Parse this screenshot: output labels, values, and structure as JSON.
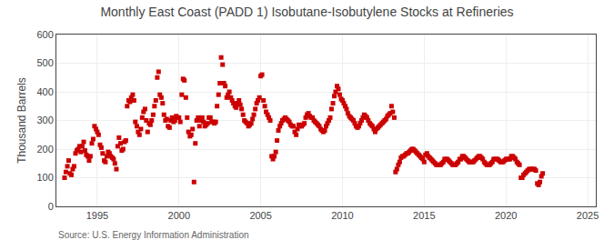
{
  "chart_data": {
    "type": "scatter",
    "title": "Monthly East Coast (PADD 1) Isobutane-Isobutylene Stocks at Refineries",
    "ylabel": "Thousand Barrels",
    "annotations": [
      "Source: U.S. Energy Information Administration"
    ],
    "color": "#cc0000",
    "marker": "square",
    "grid": true,
    "xlim": [
      1992.5,
      2025.5
    ],
    "ylim": [
      0,
      600
    ],
    "xticks": [
      1995,
      2000,
      2005,
      2010,
      2015,
      2020,
      2025
    ],
    "yticks": [
      0,
      100,
      200,
      300,
      400,
      500,
      600
    ],
    "x": [
      1993.0,
      1993.08,
      1993.17,
      1993.25,
      1993.33,
      1993.42,
      1993.5,
      1993.58,
      1993.67,
      1993.75,
      1993.83,
      1993.92,
      1994.0,
      1994.08,
      1994.17,
      1994.25,
      1994.33,
      1994.42,
      1994.5,
      1994.58,
      1994.67,
      1994.75,
      1994.83,
      1994.92,
      1995.0,
      1995.08,
      1995.17,
      1995.25,
      1995.33,
      1995.42,
      1995.5,
      1995.58,
      1995.67,
      1995.75,
      1995.83,
      1995.92,
      1996.0,
      1996.08,
      1996.17,
      1996.25,
      1996.33,
      1996.42,
      1996.5,
      1996.58,
      1996.67,
      1996.75,
      1996.83,
      1996.92,
      1997.0,
      1997.08,
      1997.17,
      1997.25,
      1997.33,
      1997.42,
      1997.5,
      1997.58,
      1997.67,
      1997.75,
      1997.83,
      1997.92,
      1998.0,
      1998.08,
      1998.17,
      1998.25,
      1998.33,
      1998.42,
      1998.5,
      1998.58,
      1998.67,
      1998.75,
      1998.83,
      1998.92,
      1999.0,
      1999.08,
      1999.17,
      1999.25,
      1999.33,
      1999.42,
      1999.5,
      1999.58,
      1999.67,
      1999.75,
      1999.83,
      1999.92,
      2000.0,
      2000.08,
      2000.17,
      2000.25,
      2000.33,
      2000.42,
      2000.5,
      2000.58,
      2000.67,
      2000.75,
      2000.83,
      2000.92,
      2001.0,
      2001.08,
      2001.17,
      2001.25,
      2001.33,
      2001.42,
      2001.5,
      2001.58,
      2001.67,
      2001.75,
      2001.83,
      2001.92,
      2002.0,
      2002.08,
      2002.17,
      2002.25,
      2002.33,
      2002.42,
      2002.5,
      2002.58,
      2002.67,
      2002.75,
      2002.83,
      2002.92,
      2003.0,
      2003.08,
      2003.17,
      2003.25,
      2003.33,
      2003.42,
      2003.5,
      2003.58,
      2003.67,
      2003.75,
      2003.83,
      2003.92,
      2004.0,
      2004.08,
      2004.17,
      2004.25,
      2004.33,
      2004.42,
      2004.5,
      2004.58,
      2004.67,
      2004.75,
      2004.83,
      2004.92,
      2005.0,
      2005.08,
      2005.17,
      2005.25,
      2005.33,
      2005.42,
      2005.5,
      2005.58,
      2005.67,
      2005.75,
      2005.83,
      2005.92,
      2006.0,
      2006.08,
      2006.17,
      2006.25,
      2006.33,
      2006.42,
      2006.5,
      2006.58,
      2006.67,
      2006.75,
      2006.83,
      2006.92,
      2007.0,
      2007.08,
      2007.17,
      2007.25,
      2007.33,
      2007.42,
      2007.5,
      2007.58,
      2007.67,
      2007.75,
      2007.83,
      2007.92,
      2008.0,
      2008.08,
      2008.17,
      2008.25,
      2008.33,
      2008.42,
      2008.5,
      2008.58,
      2008.67,
      2008.75,
      2008.83,
      2008.92,
      2009.0,
      2009.08,
      2009.17,
      2009.25,
      2009.33,
      2009.42,
      2009.5,
      2009.58,
      2009.67,
      2009.75,
      2009.83,
      2009.92,
      2010.0,
      2010.08,
      2010.17,
      2010.25,
      2010.33,
      2010.42,
      2010.5,
      2010.58,
      2010.67,
      2010.75,
      2010.83,
      2010.92,
      2011.0,
      2011.08,
      2011.17,
      2011.25,
      2011.33,
      2011.42,
      2011.5,
      2011.58,
      2011.67,
      2011.75,
      2011.83,
      2011.92,
      2012.0,
      2012.08,
      2012.17,
      2012.25,
      2012.33,
      2012.42,
      2012.5,
      2012.58,
      2012.67,
      2012.75,
      2012.83,
      2012.92,
      2013.0,
      2013.08,
      2013.17,
      2013.25,
      2013.33,
      2013.42,
      2013.5,
      2013.58,
      2013.67,
      2013.75,
      2013.83,
      2013.92,
      2014.0,
      2014.08,
      2014.17,
      2014.25,
      2014.33,
      2014.42,
      2014.5,
      2014.58,
      2014.67,
      2014.75,
      2014.83,
      2014.92,
      2015.0,
      2015.08,
      2015.17,
      2015.25,
      2015.33,
      2015.42,
      2015.5,
      2015.58,
      2015.67,
      2015.75,
      2015.83,
      2015.92,
      2016.0,
      2016.08,
      2016.17,
      2016.25,
      2016.33,
      2016.42,
      2016.5,
      2016.58,
      2016.67,
      2016.75,
      2016.83,
      2016.92,
      2017.0,
      2017.08,
      2017.17,
      2017.25,
      2017.33,
      2017.42,
      2017.5,
      2017.58,
      2017.67,
      2017.75,
      2017.83,
      2017.92,
      2018.0,
      2018.08,
      2018.17,
      2018.25,
      2018.33,
      2018.42,
      2018.5,
      2018.58,
      2018.67,
      2018.75,
      2018.83,
      2018.92,
      2019.0,
      2019.08,
      2019.17,
      2019.25,
      2019.33,
      2019.42,
      2019.5,
      2019.58,
      2019.67,
      2019.75,
      2019.83,
      2019.92,
      2020.0,
      2020.08,
      2020.17,
      2020.25,
      2020.33,
      2020.42,
      2020.5,
      2020.58,
      2020.67,
      2020.75,
      2020.83,
      2020.92,
      2021.0,
      2021.08,
      2021.17,
      2021.25,
      2021.33,
      2021.42,
      2021.5,
      2021.58,
      2021.67,
      2021.75,
      2021.83,
      2021.92,
      2022.0,
      2022.08,
      2022.17,
      2022.25
    ],
    "values": [
      100,
      120,
      140,
      160,
      115,
      110,
      130,
      140,
      185,
      195,
      200,
      210,
      190,
      210,
      225,
      195,
      180,
      175,
      160,
      175,
      220,
      235,
      280,
      270,
      260,
      250,
      215,
      205,
      185,
      160,
      155,
      175,
      190,
      185,
      175,
      170,
      165,
      150,
      130,
      210,
      240,
      220,
      195,
      200,
      225,
      230,
      350,
      370,
      365,
      380,
      390,
      370,
      295,
      280,
      260,
      250,
      270,
      310,
      330,
      340,
      300,
      260,
      290,
      285,
      300,
      320,
      350,
      370,
      450,
      470,
      390,
      380,
      360,
      320,
      300,
      305,
      280,
      275,
      300,
      310,
      295,
      300,
      315,
      310,
      310,
      295,
      390,
      445,
      440,
      380,
      310,
      260,
      245,
      250,
      270,
      85,
      220,
      300,
      310,
      280,
      300,
      310,
      295,
      280,
      285,
      290,
      310,
      310,
      295,
      295,
      290,
      295,
      350,
      390,
      430,
      520,
      495,
      430,
      420,
      380,
      390,
      400,
      380,
      370,
      360,
      350,
      345,
      360,
      370,
      355,
      340,
      320,
      300,
      295,
      290,
      280,
      285,
      290,
      305,
      320,
      340,
      360,
      370,
      380,
      455,
      460,
      370,
      350,
      330,
      320,
      310,
      300,
      175,
      165,
      175,
      190,
      230,
      265,
      280,
      290,
      300,
      305,
      310,
      305,
      300,
      295,
      285,
      280,
      280,
      260,
      250,
      270,
      285,
      280,
      280,
      285,
      290,
      310,
      320,
      325,
      315,
      310,
      310,
      300,
      295,
      290,
      285,
      280,
      270,
      265,
      260,
      265,
      280,
      290,
      300,
      310,
      340,
      360,
      385,
      400,
      420,
      410,
      390,
      375,
      370,
      360,
      350,
      340,
      325,
      315,
      310,
      305,
      300,
      290,
      280,
      275,
      280,
      290,
      300,
      310,
      320,
      315,
      310,
      300,
      290,
      285,
      280,
      270,
      260,
      270,
      275,
      280,
      285,
      290,
      295,
      300,
      305,
      315,
      320,
      325,
      350,
      330,
      310,
      120,
      130,
      145,
      155,
      170,
      175,
      175,
      180,
      185,
      185,
      190,
      195,
      200,
      200,
      195,
      190,
      185,
      180,
      175,
      170,
      165,
      155,
      180,
      185,
      175,
      170,
      165,
      160,
      155,
      150,
      145,
      145,
      145,
      145,
      150,
      155,
      165,
      165,
      165,
      160,
      155,
      150,
      145,
      145,
      145,
      150,
      155,
      165,
      165,
      175,
      175,
      170,
      165,
      160,
      155,
      155,
      155,
      155,
      160,
      165,
      170,
      175,
      175,
      170,
      165,
      155,
      150,
      145,
      145,
      145,
      150,
      155,
      165,
      165,
      165,
      165,
      160,
      155,
      155,
      155,
      160,
      165,
      165,
      165,
      165,
      175,
      175,
      170,
      165,
      155,
      150,
      145,
      100,
      100,
      110,
      115,
      120,
      125,
      130,
      130,
      130,
      130,
      130,
      125,
      80,
      75,
      85,
      105,
      115
    ]
  }
}
